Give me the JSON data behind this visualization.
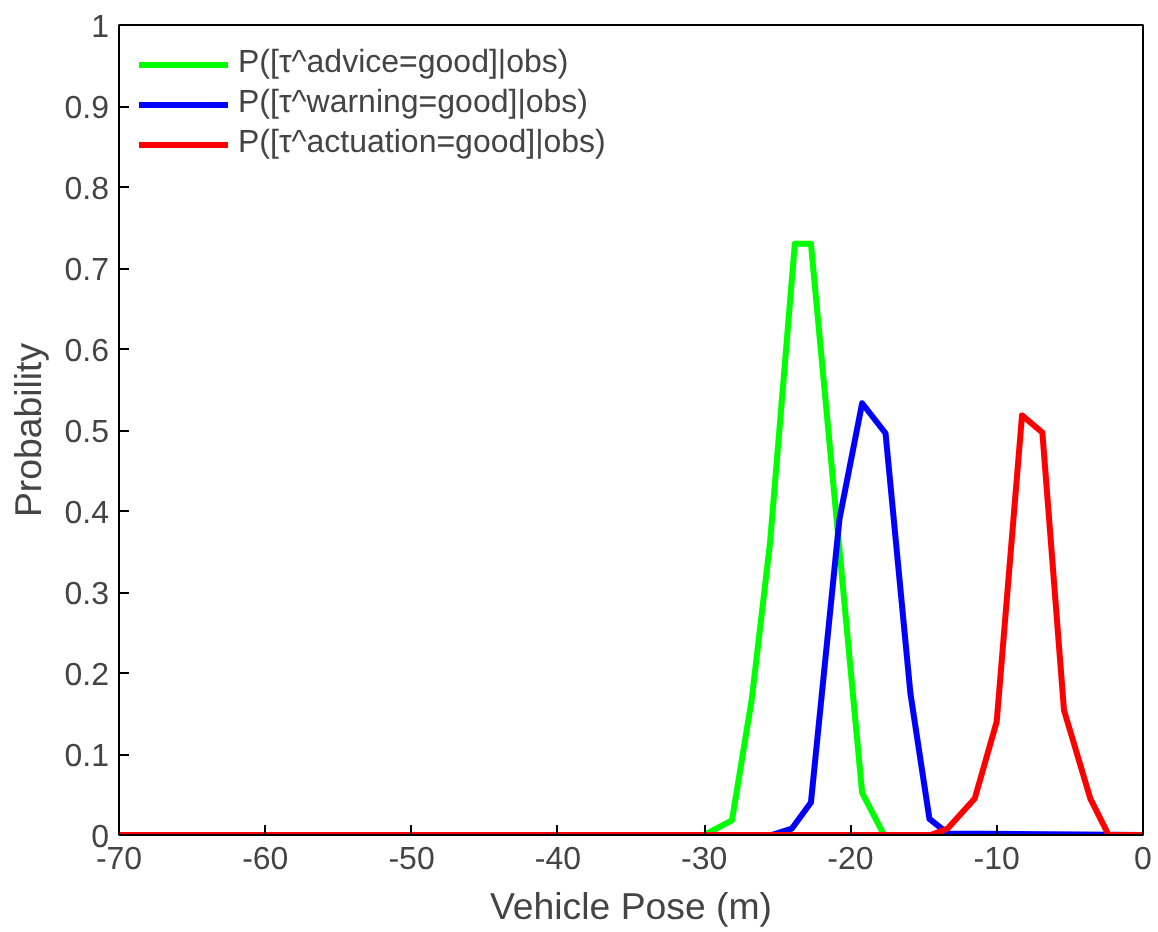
{
  "chart_data": {
    "type": "line",
    "xlabel": "Vehicle Pose (m)",
    "ylabel": "Probability",
    "xlim": [
      -70,
      0
    ],
    "ylim": [
      0,
      1
    ],
    "xticks": [
      -70,
      -60,
      -50,
      -40,
      -30,
      -20,
      -10,
      0
    ],
    "yticks": [
      0,
      0.1,
      0.2,
      0.3,
      0.4,
      0.5,
      0.6,
      0.7,
      0.8,
      0.9,
      1
    ],
    "grid": false,
    "legend": "top left",
    "line_style": "solid",
    "series": [
      {
        "name": "P([τ^advice=good]|obs)",
        "color": "#00ff00",
        "x": [
          -70,
          -30.0,
          -28.1,
          -26.75,
          -25.5,
          -23.8,
          -22.7,
          -19.2,
          -17.7,
          0
        ],
        "values": [
          0,
          0,
          0.018,
          0.167,
          0.36,
          0.73,
          0.73,
          0.052,
          0,
          0
        ]
      },
      {
        "name": "P([τ^warning=good]|obs)",
        "color": "#0000ff",
        "x": [
          -70,
          -25.4,
          -24.0,
          -22.7,
          -20.75,
          -19.2,
          -17.6,
          -15.9,
          -14.6,
          -13.35,
          0
        ],
        "values": [
          0,
          0,
          0.008,
          0.04,
          0.39,
          0.533,
          0.496,
          0.175,
          0.02,
          0.002,
          0
        ]
      },
      {
        "name": "P([τ^actuation=good]|obs)",
        "color": "#ff0000",
        "x": [
          -70,
          -14.5,
          -13.35,
          -11.5,
          -10.0,
          -8.27,
          -6.88,
          -5.4,
          -3.6,
          -2.35,
          0
        ],
        "values": [
          0,
          0,
          0.008,
          0.045,
          0.14,
          0.518,
          0.497,
          0.154,
          0.045,
          0,
          0
        ]
      }
    ]
  }
}
